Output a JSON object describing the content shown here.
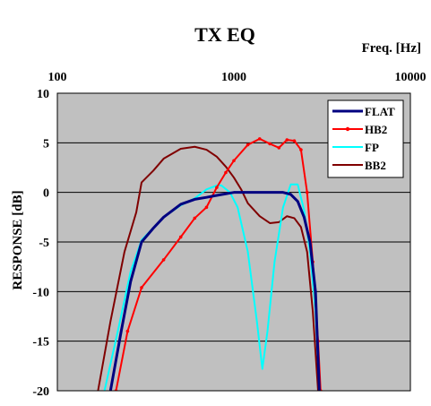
{
  "chart_data": {
    "type": "line",
    "title": "TX EQ",
    "xlabel": "Freq. [Hz]",
    "ylabel": "RESPONSE [dB]",
    "x_scale": "log",
    "xlim": [
      100,
      10000
    ],
    "ylim": [
      -20,
      10
    ],
    "x_ticks": [
      100,
      1000,
      10000
    ],
    "x_tick_labels": [
      "100",
      "1000",
      "10000"
    ],
    "y_ticks": [
      10,
      5,
      0,
      -5,
      -10,
      -15,
      -20
    ],
    "y_tick_labels": [
      "10",
      "5",
      "0",
      "-5",
      "-10",
      "-15",
      "-20"
    ],
    "grid": "horizontal",
    "plot_background": "#c0c0c0",
    "legend_position": "top-right",
    "series": [
      {
        "name": "FLAT",
        "color": "#000080",
        "width": 3,
        "marker": "none",
        "points": [
          [
            200,
            -20
          ],
          [
            230,
            -14
          ],
          [
            260,
            -9
          ],
          [
            300,
            -5
          ],
          [
            350,
            -3.6
          ],
          [
            400,
            -2.5
          ],
          [
            500,
            -1.2
          ],
          [
            600,
            -0.7
          ],
          [
            700,
            -0.5
          ],
          [
            800,
            -0.3
          ],
          [
            1000,
            0
          ],
          [
            1500,
            0
          ],
          [
            1900,
            0
          ],
          [
            2100,
            -0.2
          ],
          [
            2300,
            -0.9
          ],
          [
            2500,
            -2.5
          ],
          [
            2700,
            -5
          ],
          [
            2900,
            -10
          ],
          [
            3050,
            -20
          ]
        ]
      },
      {
        "name": "HB2",
        "color": "#ff0000",
        "width": 2,
        "marker": "dot",
        "points": [
          [
            215,
            -20
          ],
          [
            250,
            -14
          ],
          [
            300,
            -9.6
          ],
          [
            400,
            -6.8
          ],
          [
            500,
            -4.5
          ],
          [
            600,
            -2.6
          ],
          [
            700,
            -1.5
          ],
          [
            800,
            0.5
          ],
          [
            900,
            2
          ],
          [
            1000,
            3.2
          ],
          [
            1200,
            4.8
          ],
          [
            1400,
            5.4
          ],
          [
            1600,
            4.9
          ],
          [
            1800,
            4.5
          ],
          [
            2000,
            5.3
          ],
          [
            2200,
            5.2
          ],
          [
            2400,
            4.3
          ],
          [
            2600,
            0
          ],
          [
            2800,
            -7
          ],
          [
            3000,
            -15
          ],
          [
            3100,
            -20
          ]
        ]
      },
      {
        "name": "FP",
        "color": "#00ffff",
        "width": 2,
        "marker": "none",
        "points": [
          [
            185,
            -20
          ],
          [
            220,
            -14
          ],
          [
            260,
            -8
          ],
          [
            300,
            -4.8
          ],
          [
            400,
            -2.5
          ],
          [
            500,
            -1.3
          ],
          [
            600,
            -0.6
          ],
          [
            700,
            0.3
          ],
          [
            800,
            0.7
          ],
          [
            850,
            0.7
          ],
          [
            950,
            0
          ],
          [
            1050,
            -1.5
          ],
          [
            1200,
            -6
          ],
          [
            1350,
            -13
          ],
          [
            1450,
            -17.8
          ],
          [
            1550,
            -14
          ],
          [
            1700,
            -7
          ],
          [
            1900,
            -1.5
          ],
          [
            2100,
            0.8
          ],
          [
            2300,
            0.8
          ],
          [
            2500,
            -1.8
          ],
          [
            2700,
            -6
          ],
          [
            2900,
            -12
          ],
          [
            3050,
            -20
          ]
        ]
      },
      {
        "name": "BB2",
        "color": "#800000",
        "width": 2,
        "marker": "none",
        "points": [
          [
            170,
            -20
          ],
          [
            200,
            -13
          ],
          [
            240,
            -6
          ],
          [
            280,
            -2
          ],
          [
            300,
            1
          ],
          [
            350,
            2.2
          ],
          [
            400,
            3.4
          ],
          [
            500,
            4.4
          ],
          [
            600,
            4.6
          ],
          [
            700,
            4.3
          ],
          [
            800,
            3.6
          ],
          [
            900,
            2.6
          ],
          [
            1000,
            1.5
          ],
          [
            1100,
            0.3
          ],
          [
            1200,
            -1.1
          ],
          [
            1400,
            -2.4
          ],
          [
            1600,
            -3.1
          ],
          [
            1800,
            -3
          ],
          [
            2000,
            -2.4
          ],
          [
            2200,
            -2.6
          ],
          [
            2400,
            -3.5
          ],
          [
            2600,
            -6
          ],
          [
            2800,
            -12
          ],
          [
            3000,
            -20
          ]
        ]
      }
    ]
  }
}
